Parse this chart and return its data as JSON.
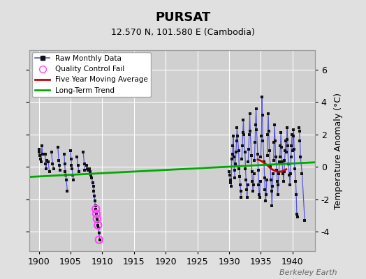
{
  "title": "PURSAT",
  "subtitle": "12.570 N, 101.580 E (Cambodia)",
  "ylabel_right": "Temperature Anomaly (°C)",
  "watermark": "Berkeley Earth",
  "xlim": [
    1898.5,
    1943.5
  ],
  "ylim": [
    -5.2,
    7.2
  ],
  "yticks": [
    -4,
    -2,
    0,
    2,
    4,
    6
  ],
  "xticks": [
    1900,
    1905,
    1910,
    1915,
    1920,
    1925,
    1930,
    1935,
    1940
  ],
  "bg_color": "#e0e0e0",
  "plot_bg_color": "#d0d0d0",
  "grid_color": "#ffffff",
  "raw_line_color": "#5555dd",
  "raw_dot_color": "#111111",
  "qc_fail_color": "#ff44ff",
  "moving_avg_color": "#cc0000",
  "trend_color": "#00aa00",
  "segments": [
    [
      [
        1900.0,
        1.1
      ],
      [
        1900.083,
        0.9
      ],
      [
        1900.167,
        0.7
      ],
      [
        1900.25,
        0.5
      ],
      [
        1900.333,
        0.3
      ],
      [
        1900.5,
        1.3
      ],
      [
        1900.583,
        0.8
      ]
    ],
    [
      [
        1901.0,
        0.8
      ],
      [
        1901.083,
        0.2
      ],
      [
        1901.167,
        -0.1
      ],
      [
        1901.25,
        0.4
      ],
      [
        1901.5,
        0.3
      ],
      [
        1901.667,
        -0.3
      ]
    ],
    [
      [
        1902.0,
        0.9
      ],
      [
        1902.167,
        0.2
      ],
      [
        1902.333,
        -0.1
      ]
    ],
    [
      [
        1903.0,
        1.2
      ],
      [
        1903.167,
        0.4
      ],
      [
        1903.25,
        0.1
      ],
      [
        1903.333,
        -0.2
      ]
    ],
    [
      [
        1904.0,
        0.8
      ],
      [
        1904.083,
        0.2
      ],
      [
        1904.167,
        -0.3
      ],
      [
        1904.25,
        -0.5
      ],
      [
        1904.333,
        -0.8
      ],
      [
        1904.5,
        -1.5
      ]
    ],
    [
      [
        1905.0,
        1.0
      ],
      [
        1905.083,
        0.5
      ],
      [
        1905.167,
        0.1
      ],
      [
        1905.25,
        -0.1
      ],
      [
        1905.333,
        -0.5
      ],
      [
        1905.5,
        -0.8
      ]
    ],
    [
      [
        1906.0,
        0.6
      ],
      [
        1906.167,
        0.1
      ],
      [
        1906.333,
        -0.3
      ]
    ],
    [
      [
        1907.0,
        0.9
      ],
      [
        1907.167,
        0.2
      ],
      [
        1907.25,
        -0.2
      ]
    ],
    [
      [
        1907.5,
        0.1
      ],
      [
        1907.667,
        -0.1
      ],
      [
        1907.75,
        -0.2
      ],
      [
        1908.0,
        -0.1
      ],
      [
        1908.083,
        -0.3
      ],
      [
        1908.167,
        -0.5
      ],
      [
        1908.333,
        -0.7
      ],
      [
        1908.5,
        -1.0
      ],
      [
        1908.583,
        -1.2
      ],
      [
        1908.667,
        -1.5
      ],
      [
        1908.75,
        -1.8
      ],
      [
        1908.833,
        -2.1
      ],
      [
        1908.917,
        -2.4
      ],
      [
        1909.0,
        -2.6
      ],
      [
        1909.083,
        -2.9
      ],
      [
        1909.167,
        -3.2
      ],
      [
        1909.25,
        -3.4
      ],
      [
        1909.333,
        -3.6
      ],
      [
        1909.417,
        -3.8
      ],
      [
        1909.5,
        -4.1
      ],
      [
        1909.583,
        -4.5
      ]
    ],
    [
      [
        1930.0,
        -0.3
      ],
      [
        1930.083,
        -0.5
      ],
      [
        1930.167,
        -0.8
      ],
      [
        1930.25,
        -1.0
      ],
      [
        1930.333,
        -1.2
      ],
      [
        1930.417,
        0.5
      ],
      [
        1930.5,
        0.8
      ],
      [
        1930.583,
        1.3
      ],
      [
        1930.667,
        1.9
      ],
      [
        1930.75,
        0.6
      ],
      [
        1930.833,
        -0.2
      ],
      [
        1930.917,
        -0.7
      ]
    ],
    [
      [
        1931.0,
        0.2
      ],
      [
        1931.083,
        0.9
      ],
      [
        1931.167,
        1.6
      ],
      [
        1931.25,
        2.4
      ],
      [
        1931.333,
        1.9
      ],
      [
        1931.5,
        1.0
      ],
      [
        1931.583,
        -0.1
      ],
      [
        1931.667,
        -0.6
      ],
      [
        1931.75,
        -1.1
      ],
      [
        1931.833,
        -1.5
      ],
      [
        1931.917,
        -1.9
      ]
    ],
    [
      [
        1932.0,
        0.5
      ],
      [
        1932.083,
        1.3
      ],
      [
        1932.167,
        2.1
      ],
      [
        1932.25,
        2.9
      ],
      [
        1932.333,
        2.0
      ],
      [
        1932.5,
        0.9
      ],
      [
        1932.583,
        -0.1
      ],
      [
        1932.667,
        -0.8
      ],
      [
        1932.75,
        -1.4
      ],
      [
        1932.833,
        -1.9
      ],
      [
        1932.917,
        -1.1
      ]
    ],
    [
      [
        1933.0,
        0.3
      ],
      [
        1933.083,
        1.1
      ],
      [
        1933.167,
        2.0
      ],
      [
        1933.25,
        3.3
      ],
      [
        1933.333,
        2.2
      ],
      [
        1933.5,
        0.7
      ],
      [
        1933.583,
        -0.3
      ],
      [
        1933.667,
        -0.9
      ],
      [
        1933.75,
        -1.5
      ],
      [
        1933.833,
        -1.1
      ],
      [
        1933.917,
        -0.4
      ]
    ],
    [
      [
        1934.0,
        0.4
      ],
      [
        1934.083,
        1.5
      ],
      [
        1934.167,
        2.6
      ],
      [
        1934.25,
        3.6
      ],
      [
        1934.333,
        2.3
      ],
      [
        1934.5,
        0.8
      ],
      [
        1934.583,
        -0.2
      ],
      [
        1934.667,
        -1.1
      ],
      [
        1934.75,
        -1.7
      ],
      [
        1934.833,
        -1.9
      ],
      [
        1934.917,
        -0.9
      ]
    ],
    [
      [
        1935.0,
        0.6
      ],
      [
        1935.083,
        1.9
      ],
      [
        1935.167,
        4.3
      ],
      [
        1935.25,
        3.2
      ],
      [
        1935.333,
        1.6
      ],
      [
        1935.5,
        0.3
      ],
      [
        1935.583,
        -0.7
      ],
      [
        1935.667,
        -1.4
      ],
      [
        1935.75,
        -2.1
      ],
      [
        1935.833,
        -1.7
      ],
      [
        1935.917,
        -0.8
      ]
    ],
    [
      [
        1936.0,
        0.7
      ],
      [
        1936.083,
        2.0
      ],
      [
        1936.167,
        3.3
      ],
      [
        1936.25,
        2.2
      ],
      [
        1936.333,
        1.0
      ],
      [
        1936.5,
        0.0
      ],
      [
        1936.583,
        -0.8
      ],
      [
        1936.667,
        -1.5
      ],
      [
        1936.75,
        -2.4
      ],
      [
        1936.833,
        -1.2
      ],
      [
        1936.917,
        -0.4
      ]
    ],
    [
      [
        1937.0,
        0.4
      ],
      [
        1937.083,
        1.5
      ],
      [
        1937.167,
        2.6
      ],
      [
        1937.25,
        1.6
      ],
      [
        1937.333,
        0.6
      ],
      [
        1937.5,
        -0.2
      ],
      [
        1937.583,
        -0.9
      ],
      [
        1937.667,
        -1.7
      ],
      [
        1937.75,
        -1.1
      ],
      [
        1937.833,
        -0.4
      ],
      [
        1937.917,
        0.3
      ]
    ],
    [
      [
        1938.0,
        0.6
      ],
      [
        1938.083,
        1.3
      ],
      [
        1938.167,
        2.1
      ],
      [
        1938.25,
        1.2
      ],
      [
        1938.333,
        0.3
      ],
      [
        1938.5,
        -0.4
      ],
      [
        1938.583,
        -0.9
      ],
      [
        1938.667,
        -0.3
      ],
      [
        1938.75,
        0.4
      ],
      [
        1938.833,
        1.0
      ],
      [
        1938.917,
        1.6
      ]
    ],
    [
      [
        1939.0,
        0.9
      ],
      [
        1939.083,
        1.7
      ],
      [
        1939.167,
        2.4
      ],
      [
        1939.25,
        1.3
      ],
      [
        1939.333,
        0.2
      ],
      [
        1939.5,
        -0.5
      ],
      [
        1939.583,
        -1.1
      ],
      [
        1939.667,
        -0.4
      ],
      [
        1939.75,
        0.6
      ],
      [
        1939.833,
        1.3
      ],
      [
        1939.917,
        2.0
      ]
    ],
    [
      [
        1940.0,
        1.0
      ],
      [
        1940.083,
        1.9
      ],
      [
        1940.167,
        2.3
      ],
      [
        1940.25,
        1.1
      ],
      [
        1940.333,
        -0.1
      ],
      [
        1940.5,
        -0.9
      ],
      [
        1940.583,
        -1.7
      ],
      [
        1940.667,
        -2.9
      ],
      [
        1940.75,
        -3.1
      ]
    ],
    [
      [
        1941.0,
        2.4
      ],
      [
        1941.083,
        2.2
      ],
      [
        1941.167,
        1.6
      ],
      [
        1941.25,
        0.6
      ],
      [
        1941.5,
        -0.4
      ],
      [
        1941.917,
        -3.3
      ]
    ]
  ],
  "qc_fail_points": [
    [
      1909.0,
      -2.6
    ],
    [
      1909.083,
      -2.9
    ],
    [
      1909.167,
      -3.2
    ],
    [
      1909.333,
      -3.6
    ],
    [
      1909.5,
      -4.5
    ]
  ],
  "moving_avg": [
    [
      1934.5,
      0.45
    ],
    [
      1935.0,
      0.38
    ],
    [
      1935.25,
      0.32
    ],
    [
      1935.5,
      0.25
    ],
    [
      1935.75,
      0.18
    ],
    [
      1936.0,
      0.1
    ],
    [
      1936.25,
      0.02
    ],
    [
      1936.5,
      -0.08
    ],
    [
      1936.75,
      -0.15
    ],
    [
      1937.0,
      -0.2
    ],
    [
      1937.25,
      -0.25
    ],
    [
      1937.5,
      -0.28
    ],
    [
      1937.75,
      -0.3
    ],
    [
      1938.0,
      -0.3
    ],
    [
      1938.25,
      -0.28
    ],
    [
      1938.5,
      -0.25
    ],
    [
      1938.75,
      -0.2
    ],
    [
      1939.0,
      -0.15
    ]
  ],
  "trend_x": [
    1898.5,
    1943.5
  ],
  "trend_y": [
    -0.62,
    0.28
  ],
  "legend_labels": [
    "Raw Monthly Data",
    "Quality Control Fail",
    "Five Year Moving Average",
    "Long-Term Trend"
  ]
}
